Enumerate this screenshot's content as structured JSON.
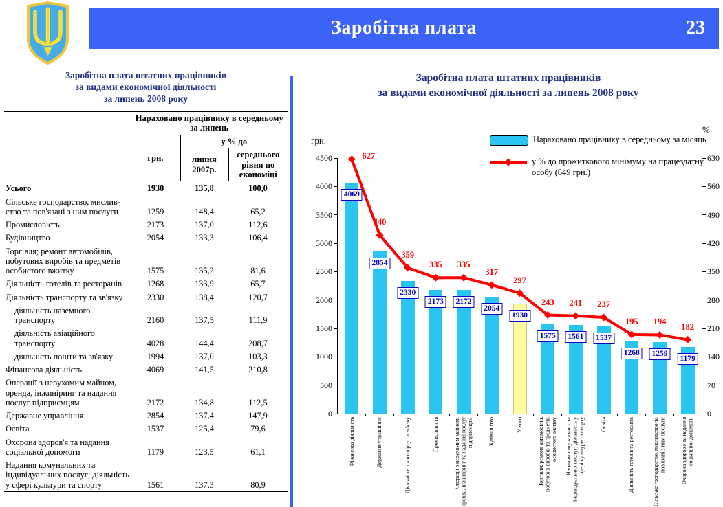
{
  "header": {
    "title": "Заробітна плата",
    "page_number": "23"
  },
  "emblem": {
    "name": "ukraine-coat-of-arms"
  },
  "colors": {
    "header_bar": "#3B63F6",
    "title_text": "#1F3080",
    "bar": "#29C5F0",
    "bar_highlight": "#FFFB9E",
    "line": "#FF0000",
    "value_label": "#0000CC"
  },
  "table": {
    "title_lines": [
      "Заробітна плата штатних працівників",
      "за видами економічної діяльності",
      "за липень 2008 року"
    ],
    "header": {
      "group": "Нараховано працівнику в середньому за липень",
      "col_grn": "грн.",
      "pct_group": "у % до",
      "col_pct_2007": "липня 2007р.",
      "col_pct_avg": "середнього рівня по економіці"
    },
    "rows": [
      {
        "name": "Усього",
        "grn": "1930",
        "pct2007": "135,8",
        "pctavg": "100,0",
        "bold": true,
        "indent": false
      },
      {
        "name": "Сільське господарство, мислив-ство та пов'язані з ним послуги",
        "grn": "1259",
        "pct2007": "148,4",
        "pctavg": "65,2",
        "bold": false,
        "indent": false
      },
      {
        "name": "Промисловість",
        "grn": "2173",
        "pct2007": "137,0",
        "pctavg": "112,6",
        "bold": false,
        "indent": false
      },
      {
        "name": "Будівництво",
        "grn": "2054",
        "pct2007": "133,3",
        "pctavg": "106,4",
        "bold": false,
        "indent": false
      },
      {
        "name": "Торгівля; ремонт автомобілів, побутових виробів та предметів особистого вжитку",
        "grn": "1575",
        "pct2007": "135,2",
        "pctavg": "81,6",
        "bold": false,
        "indent": false
      },
      {
        "name": "Діяльність готелів та ресторанів",
        "grn": "1268",
        "pct2007": "133,9",
        "pctavg": "65,7",
        "bold": false,
        "indent": false
      },
      {
        "name": "Діяльність транспорту та зв'язку",
        "grn": "2330",
        "pct2007": "138,4",
        "pctavg": "120,7",
        "bold": false,
        "indent": false
      },
      {
        "name": "діяльність наземного транспорту",
        "grn": "2160",
        "pct2007": "137,5",
        "pctavg": "111,9",
        "bold": false,
        "indent": true
      },
      {
        "name": "діяльність авіаційного транспорту",
        "grn": "4028",
        "pct2007": "144,4",
        "pctavg": "208,7",
        "bold": false,
        "indent": true
      },
      {
        "name": "діяльність пошти та зв'язку",
        "grn": "1994",
        "pct2007": "137,0",
        "pctavg": "103,3",
        "bold": false,
        "indent": true
      },
      {
        "name": "Фінансова діяльність",
        "grn": "4069",
        "pct2007": "141,5",
        "pctavg": "210,8",
        "bold": false,
        "indent": false
      },
      {
        "name": "Операції з нерухомим майном, оренда, інжиніринг та надання послуг підприємцям",
        "grn": "2172",
        "pct2007": "134,8",
        "pctavg": "112,5",
        "bold": false,
        "indent": false
      },
      {
        "name": "Державне управління",
        "grn": "2854",
        "pct2007": "137,4",
        "pctavg": "147,9",
        "bold": false,
        "indent": false
      },
      {
        "name": "Освіта",
        "grn": "1537",
        "pct2007": "125,4",
        "pctavg": "79,6",
        "bold": false,
        "indent": false
      },
      {
        "name": "Охорона здоров'я та надання соціальної допомоги",
        "grn": "1179",
        "pct2007": "123,5",
        "pctavg": "61,1",
        "bold": false,
        "indent": false
      },
      {
        "name": "Надання комунальних та індивідуальних послуг; діяльність у сфері культури та спорту",
        "grn": "1561",
        "pct2007": "137,3",
        "pctavg": "80,9",
        "bold": false,
        "indent": false
      }
    ]
  },
  "chart": {
    "title_lines": [
      "Заробітна плата штатних працівників",
      "за видами економічної діяльності за липень 2008 року"
    ],
    "left_axis_unit": "грн.",
    "right_axis_unit": "%",
    "legend": [
      {
        "type": "bar",
        "label": "Нараховано працівнику в середньому за місяць"
      },
      {
        "type": "line",
        "label": "у % до прожиткового мінімуму на працездатну особу (649 грн.)"
      }
    ]
  },
  "chart_data": {
    "type": "bar",
    "title": "Заробітна плата штатних працівників за видами економічної діяльності за липень 2008 року",
    "categories": [
      "Фінансова діяльність",
      "Державне управління",
      "Діяльність транспорту та зв'язку",
      "Промисловість",
      "Операції з нерухомим майном, оренда, інжиніринг та надання послуг підприємцям",
      "Будівництво",
      "Усього",
      "Торгівля; ремонт автомобілів, побутових виробів та предметів особистого вжитку",
      "Надання комунальних та індивідуальних послуг; діяльність у сфері культури та спорту",
      "Освіта",
      "Діяльність готелів та ресторанів",
      "Сільське господарство, мисливство та пов'язані з ним послуги",
      "Охорона здоров'я та надання соціальної допомоги"
    ],
    "series": [
      {
        "name": "Нараховано працівнику в середньому за місяць",
        "type": "bar",
        "axis": "left",
        "values": [
          4069,
          2854,
          2330,
          2173,
          2172,
          2054,
          1930,
          1575,
          1561,
          1537,
          1268,
          1259,
          1179
        ]
      },
      {
        "name": "у % до прожиткового мінімуму на працездатну особу (649 грн.)",
        "type": "line",
        "axis": "right",
        "values": [
          627,
          440,
          359,
          335,
          335,
          317,
          297,
          243,
          241,
          237,
          195,
          194,
          182
        ]
      }
    ],
    "left_axis": {
      "label": "грн.",
      "min": 0,
      "max": 4500,
      "step": 500
    },
    "right_axis": {
      "label": "%",
      "min": 0,
      "max": 630,
      "step": 70
    },
    "highlight_category": "Усього",
    "grid": false,
    "legend_position": "top-right"
  }
}
